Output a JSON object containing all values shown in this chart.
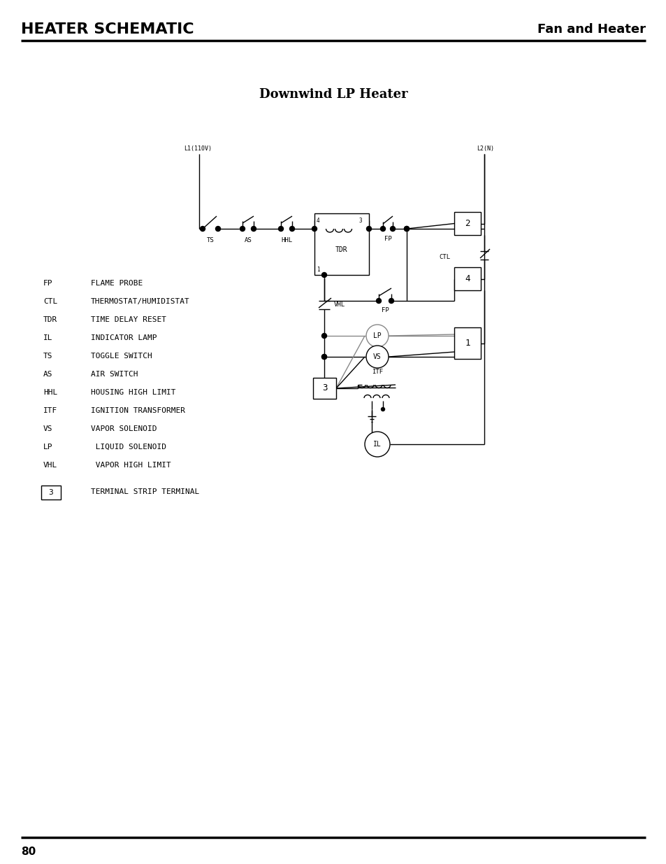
{
  "title": "Downwind LP Heater",
  "header_left": "HEATER SCHEMATIC",
  "header_right": "Fan and Heater",
  "page_number": "80",
  "legend": [
    [
      "FP",
      "FLAME PROBE"
    ],
    [
      "CTL",
      "THERMOSTAT/HUMIDISTAT"
    ],
    [
      "TDR",
      "TIME DELAY RESET"
    ],
    [
      "IL",
      "INDICATOR LAMP"
    ],
    [
      "TS",
      "TOGGLE SWITCH"
    ],
    [
      "AS",
      "AIR SWITCH"
    ],
    [
      "HHL",
      "HOUSING HIGH LIMIT"
    ],
    [
      "ITF",
      "IGNITION TRANSFORMER"
    ],
    [
      "VS",
      "VAPOR SOLENOID"
    ],
    [
      "LP",
      " LIQUID SOLENOID"
    ],
    [
      "VHL",
      " VAPOR HIGH LIMIT"
    ]
  ],
  "terminal_note": "TERMINAL STRIP TERMINAL",
  "bg_color": "#ffffff",
  "line_color": "#000000",
  "gray_color": "#888888"
}
